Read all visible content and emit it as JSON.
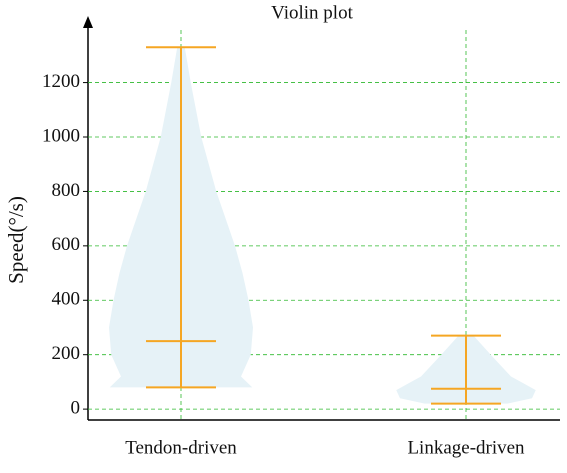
{
  "chart_data": {
    "type": "violin",
    "title": "Violin plot",
    "y_label": "Speed(°/s)",
    "categories": [
      "Tendon-driven",
      "Linkage-driven"
    ],
    "ylim": [
      -40,
      1430
    ],
    "yticks": [
      0,
      200,
      400,
      600,
      800,
      1000,
      1200
    ],
    "grid": true,
    "fill_color": "#e6f2f7",
    "line_color": "#f5a623",
    "grid_color": "#2db82d",
    "violins": [
      {
        "min": 80,
        "median": 250,
        "max": 1330,
        "profile": {
          "y": [
            80,
            120,
            200,
            300,
            400,
            500,
            600,
            800,
            1000,
            1200,
            1330
          ],
          "width": [
            0.95,
            0.8,
            0.93,
            0.96,
            0.9,
            0.82,
            0.72,
            0.47,
            0.27,
            0.13,
            0.05
          ]
        }
      },
      {
        "min": 20,
        "median": 75,
        "max": 270,
        "profile": {
          "y": [
            20,
            40,
            70,
            120,
            200,
            270
          ],
          "width": [
            0.55,
            0.88,
            0.93,
            0.6,
            0.33,
            0.1
          ]
        }
      }
    ]
  }
}
